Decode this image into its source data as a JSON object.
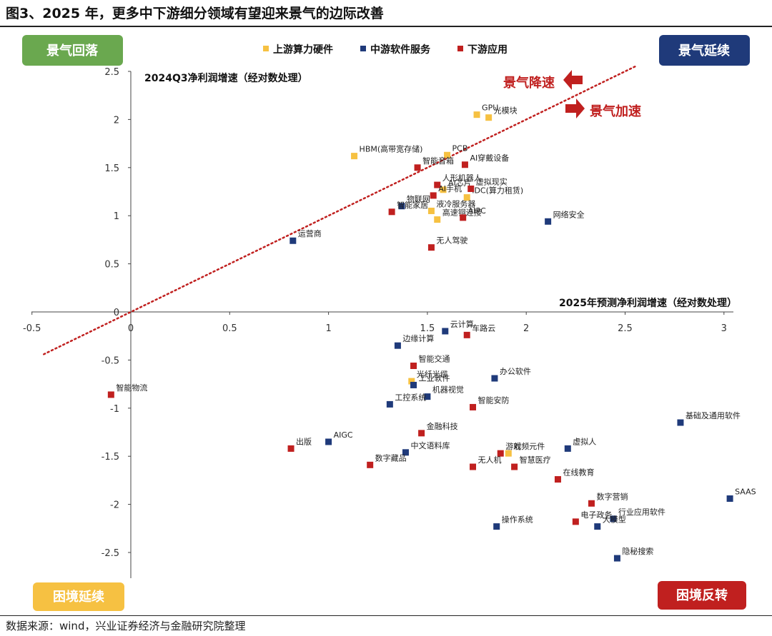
{
  "figure": {
    "title": "图3、2025 年，更多中下游细分领域有望迎来景气的边际改善",
    "source": "数据来源：wind，兴业证券经济与金融研究院整理"
  },
  "colors": {
    "upstream": "#f6c142",
    "midstream": "#1f3a7a",
    "downstream": "#c0201f",
    "quad_green": "#6aa84f",
    "quad_navy": "#1f3a7a",
    "quad_yellow": "#f6c142",
    "quad_red": "#c0201f",
    "trend": "#c0201f"
  },
  "quadrants": {
    "top_left": "景气回落",
    "top_right": "景气延续",
    "bottom_left": "困境延续",
    "bottom_right": "困境反转"
  },
  "annotations": {
    "decel": "景气降速",
    "accel": "景气加速"
  },
  "chart_data": {
    "type": "scatter",
    "xlabel": "2025年预测净利润增速（经对数处理）",
    "ylabel": "2024Q3净利润增速（经对数处理）",
    "xlim": [
      -0.5,
      3
    ],
    "ylim": [
      -2.5,
      2.5
    ],
    "x_ticks": [
      "-0.5",
      "0",
      "0.5",
      "1",
      "1.5",
      "2",
      "2.5",
      "3"
    ],
    "y_ticks": [
      "2.5",
      "2",
      "1.5",
      "1",
      "0.5",
      "0",
      "-0.5",
      "-1",
      "-1.5",
      "-2",
      "-2.5"
    ],
    "legend": [
      "上游算力硬件",
      "中游软件服务",
      "下游应用"
    ],
    "legend_position": "top-center",
    "grid": false,
    "reference_line": "y = x",
    "series": [
      {
        "name": "上游算力硬件",
        "points": [
          {
            "label": "GPU",
            "x": 1.75,
            "y": 2.05
          },
          {
            "label": "光模块",
            "x": 1.81,
            "y": 2.02
          },
          {
            "label": "HBM(高带宽存储)",
            "x": 1.13,
            "y": 1.62
          },
          {
            "label": "PCB",
            "x": 1.6,
            "y": 1.63
          },
          {
            "label": "AI芯片",
            "x": 1.58,
            "y": 1.27
          },
          {
            "label": "IDC(算力租赁)",
            "x": 1.7,
            "y": 1.19
          },
          {
            "label": "液冷服务器",
            "x": 1.52,
            "y": 1.05
          },
          {
            "label": "高速铜连接",
            "x": 1.55,
            "y": 0.96
          },
          {
            "label": "光纤光缆",
            "x": 1.42,
            "y": -0.72
          },
          {
            "label": "射频元件",
            "x": 1.91,
            "y": -1.47
          }
        ]
      },
      {
        "name": "中游软件服务",
        "points": [
          {
            "label": "物联网",
            "x": 1.37,
            "y": 1.1
          },
          {
            "label": "网络安全",
            "x": 2.11,
            "y": 0.94
          },
          {
            "label": "运营商",
            "x": 0.82,
            "y": 0.74
          },
          {
            "label": "云计算",
            "x": 1.59,
            "y": -0.2
          },
          {
            "label": "边缘计算",
            "x": 1.35,
            "y": -0.35
          },
          {
            "label": "办公软件",
            "x": 1.84,
            "y": -0.69
          },
          {
            "label": "工业软件",
            "x": 1.43,
            "y": -0.76
          },
          {
            "label": "机器视觉",
            "x": 1.5,
            "y": -0.88
          },
          {
            "label": "工控系统",
            "x": 1.31,
            "y": -0.96
          },
          {
            "label": "基础及通用软件",
            "x": 2.78,
            "y": -1.15
          },
          {
            "label": "AIGC",
            "x": 1.0,
            "y": -1.35
          },
          {
            "label": "中文语料库",
            "x": 1.39,
            "y": -1.46
          },
          {
            "label": "虚拟人",
            "x": 2.21,
            "y": -1.42
          },
          {
            "label": "SAAS",
            "x": 3.03,
            "y": -1.94
          },
          {
            "label": "行业应用软件",
            "x": 2.44,
            "y": -2.15
          },
          {
            "label": "大模型",
            "x": 2.36,
            "y": -2.23
          },
          {
            "label": "操作系统",
            "x": 1.85,
            "y": -2.23
          },
          {
            "label": "隐秘搜索",
            "x": 2.46,
            "y": -2.56
          }
        ]
      },
      {
        "name": "下游应用",
        "points": [
          {
            "label": "智能音箱",
            "x": 1.45,
            "y": 1.5
          },
          {
            "label": "AI穿戴设备",
            "x": 1.69,
            "y": 1.53
          },
          {
            "label": "人形机器人",
            "x": 1.55,
            "y": 1.32
          },
          {
            "label": "虚拟现实",
            "x": 1.72,
            "y": 1.28
          },
          {
            "label": "AI手机",
            "x": 1.53,
            "y": 1.21
          },
          {
            "label": "智能家居",
            "x": 1.32,
            "y": 1.04
          },
          {
            "label": "AIPC",
            "x": 1.68,
            "y": 0.98
          },
          {
            "label": "无人驾驶",
            "x": 1.52,
            "y": 0.67
          },
          {
            "label": "车路云",
            "x": 1.7,
            "y": -0.24
          },
          {
            "label": "智能交通",
            "x": 1.43,
            "y": -0.56
          },
          {
            "label": "智能安防",
            "x": 1.73,
            "y": -0.99
          },
          {
            "label": "智能物流",
            "x": -0.1,
            "y": -0.86
          },
          {
            "label": "金融科技",
            "x": 1.47,
            "y": -1.26
          },
          {
            "label": "出版",
            "x": 0.81,
            "y": -1.42
          },
          {
            "label": "数字藏品",
            "x": 1.21,
            "y": -1.59
          },
          {
            "label": "游戏",
            "x": 1.87,
            "y": -1.47
          },
          {
            "label": "无人机",
            "x": 1.73,
            "y": -1.61
          },
          {
            "label": "智慧医疗",
            "x": 1.94,
            "y": -1.61
          },
          {
            "label": "在线教育",
            "x": 2.16,
            "y": -1.74
          },
          {
            "label": "数字营销",
            "x": 2.33,
            "y": -1.99
          },
          {
            "label": "电子政务",
            "x": 2.25,
            "y": -2.18
          }
        ]
      }
    ]
  }
}
